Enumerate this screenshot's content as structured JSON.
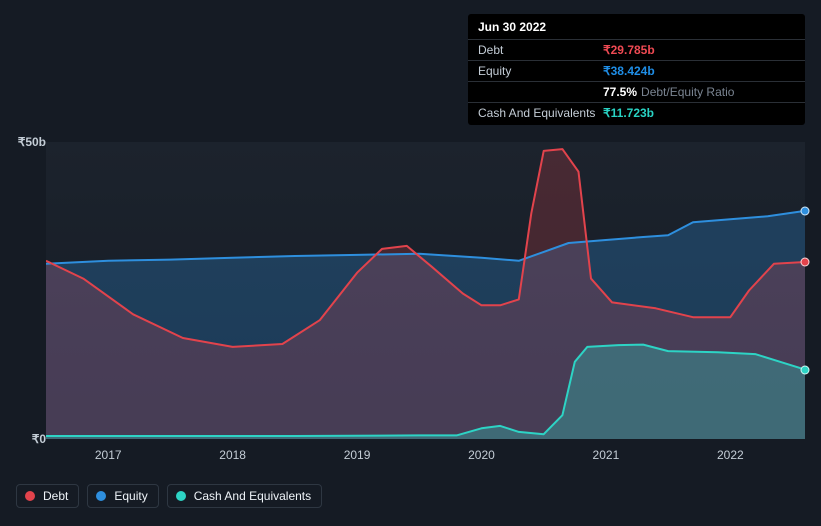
{
  "tooltip": {
    "date": "Jun 30 2022",
    "rows": {
      "debt_label": "Debt",
      "debt_value": "₹29.785b",
      "equity_label": "Equity",
      "equity_value": "₹38.424b",
      "ratio_value": "77.5%",
      "ratio_label": "Debt/Equity Ratio",
      "cash_label": "Cash And Equivalents",
      "cash_value": "₹11.723b"
    }
  },
  "chart": {
    "type": "area",
    "background_color": "#151b24",
    "plot_bg": "#1c232d",
    "ylim": [
      0,
      50
    ],
    "y_ticks": [
      {
        "value": 50,
        "label": "₹50b"
      },
      {
        "value": 0,
        "label": "₹0"
      }
    ],
    "x_ticks": [
      "2017",
      "2018",
      "2019",
      "2020",
      "2021",
      "2022"
    ],
    "x_domain": [
      2016.5,
      2022.6
    ],
    "series": {
      "debt": {
        "label": "Debt",
        "color": "#e2434c",
        "fill_opacity": 0.22,
        "points": [
          [
            2016.5,
            30
          ],
          [
            2016.8,
            27
          ],
          [
            2017.2,
            21
          ],
          [
            2017.6,
            17
          ],
          [
            2018.0,
            15.5
          ],
          [
            2018.4,
            16
          ],
          [
            2018.7,
            20
          ],
          [
            2019.0,
            28
          ],
          [
            2019.2,
            32
          ],
          [
            2019.4,
            32.5
          ],
          [
            2019.6,
            29
          ],
          [
            2019.85,
            24.5
          ],
          [
            2020.0,
            22.5
          ],
          [
            2020.15,
            22.5
          ],
          [
            2020.3,
            23.5
          ],
          [
            2020.4,
            38
          ],
          [
            2020.5,
            48.5
          ],
          [
            2020.65,
            48.8
          ],
          [
            2020.78,
            45
          ],
          [
            2020.88,
            27
          ],
          [
            2021.05,
            23
          ],
          [
            2021.4,
            22
          ],
          [
            2021.7,
            20.5
          ],
          [
            2022.0,
            20.5
          ],
          [
            2022.15,
            25
          ],
          [
            2022.35,
            29.5
          ],
          [
            2022.6,
            29.8
          ]
        ]
      },
      "equity": {
        "label": "Equity",
        "color": "#2e8fde",
        "fill_opacity": 0.28,
        "points": [
          [
            2016.5,
            29.5
          ],
          [
            2017.0,
            30
          ],
          [
            2017.5,
            30.2
          ],
          [
            2018.0,
            30.5
          ],
          [
            2018.5,
            30.8
          ],
          [
            2019.0,
            31
          ],
          [
            2019.5,
            31.2
          ],
          [
            2020.0,
            30.5
          ],
          [
            2020.3,
            30
          ],
          [
            2020.5,
            31.5
          ],
          [
            2020.7,
            33
          ],
          [
            2021.0,
            33.5
          ],
          [
            2021.3,
            34
          ],
          [
            2021.5,
            34.3
          ],
          [
            2021.7,
            36.5
          ],
          [
            2022.0,
            37
          ],
          [
            2022.3,
            37.5
          ],
          [
            2022.6,
            38.4
          ]
        ]
      },
      "cash": {
        "label": "Cash And Equivalents",
        "color": "#2dd4c5",
        "fill_opacity": 0.3,
        "points": [
          [
            2016.5,
            0.5
          ],
          [
            2017.5,
            0.5
          ],
          [
            2018.5,
            0.5
          ],
          [
            2019.5,
            0.6
          ],
          [
            2019.8,
            0.6
          ],
          [
            2020.0,
            1.8
          ],
          [
            2020.15,
            2.2
          ],
          [
            2020.3,
            1.2
          ],
          [
            2020.5,
            0.8
          ],
          [
            2020.65,
            4
          ],
          [
            2020.75,
            13
          ],
          [
            2020.85,
            15.5
          ],
          [
            2021.1,
            15.8
          ],
          [
            2021.3,
            15.9
          ],
          [
            2021.5,
            14.8
          ],
          [
            2021.9,
            14.6
          ],
          [
            2022.2,
            14.3
          ],
          [
            2022.4,
            13
          ],
          [
            2022.6,
            11.7
          ]
        ]
      }
    }
  },
  "legend": {
    "debt": "Debt",
    "equity": "Equity",
    "cash": "Cash And Equivalents"
  }
}
